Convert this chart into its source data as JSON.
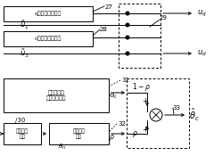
{
  "bg_color": "#ffffff",
  "box27_label": "q轴电压计算单元",
  "box28_label": "d轴电压计算单元",
  "box_est_label": "行进波算法\n转子位置计算",
  "box30_label": "负载参数\n模型",
  "box_pos_label": "位置估计\n系统"
}
